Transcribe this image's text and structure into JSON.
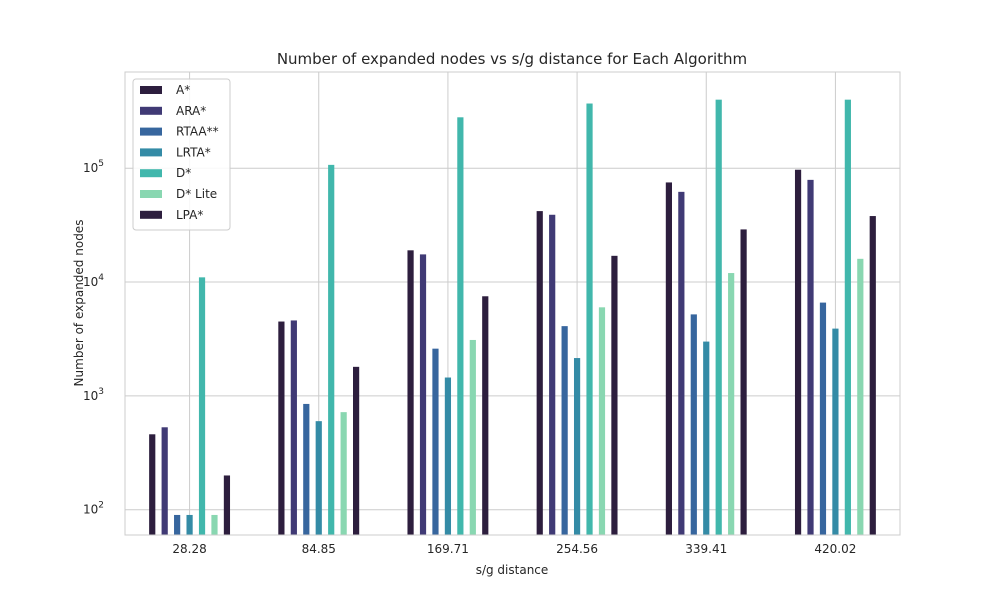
{
  "chart_data": {
    "type": "bar",
    "title": "Number of expanded nodes vs s/g distance for Each Algorithm",
    "xlabel": "s/g distance",
    "ylabel": "Number of expanded nodes",
    "yscale": "log",
    "ylim": [
      60,
      700000
    ],
    "grid": true,
    "legend_position": "top-left",
    "categories": [
      "28.28",
      "84.85",
      "169.71",
      "254.56",
      "339.41",
      "420.02"
    ],
    "y_ticks": [
      {
        "value": 100,
        "base": "10",
        "exp": "2"
      },
      {
        "value": 1000,
        "base": "10",
        "exp": "3"
      },
      {
        "value": 10000,
        "base": "10",
        "exp": "4"
      },
      {
        "value": 100000,
        "base": "10",
        "exp": "5"
      }
    ],
    "series": [
      {
        "name": "A*",
        "color": "#2d1e3e",
        "values": [
          460,
          4500,
          19000,
          42000,
          75000,
          97000
        ]
      },
      {
        "name": "ARA*",
        "color": "#403a75",
        "values": [
          530,
          4600,
          17500,
          39000,
          62000,
          79000
        ]
      },
      {
        "name": "RTAA**",
        "color": "#37669e",
        "values": [
          90,
          850,
          2600,
          4100,
          5200,
          6600
        ]
      },
      {
        "name": "LRTA*",
        "color": "#348ba6",
        "values": [
          90,
          600,
          1450,
          2150,
          3000,
          3900
        ]
      },
      {
        "name": "D*",
        "color": "#41b7ac",
        "values": [
          11000,
          107000,
          280000,
          370000,
          400000,
          400000
        ]
      },
      {
        "name": "D* Lite",
        "color": "#89d7b1",
        "values": [
          90,
          720,
          3100,
          6000,
          12000,
          16000
        ]
      },
      {
        "name": "LPA*",
        "color": "#2d1e3e",
        "values": [
          200,
          1800,
          7500,
          17000,
          29000,
          38000
        ]
      }
    ]
  }
}
